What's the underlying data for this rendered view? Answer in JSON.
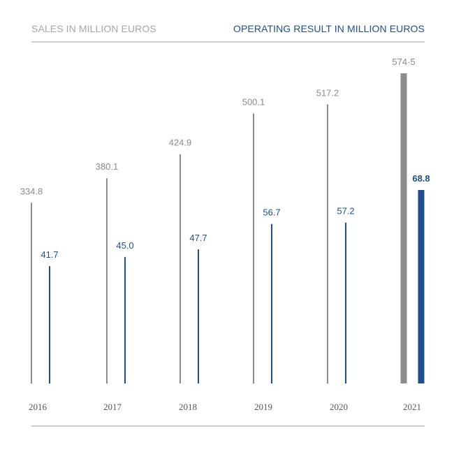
{
  "header": {
    "left_title": "SALES IN MILLION EUROS",
    "right_title": "OPERATING RESULT IN MILLION EUROS"
  },
  "colors": {
    "sales": "#8c8c8c",
    "sales_label": "#8c8c8c",
    "operating": "#1f4e8c",
    "operating_label": "#1f4e8c",
    "year_label": "#595959",
    "rule": "#cfcfcf"
  },
  "chart_data": {
    "type": "bar",
    "categories": [
      "2016",
      "2017",
      "2018",
      "2019",
      "2020",
      "2021"
    ],
    "series": [
      {
        "name": "SALES IN MILLION EUROS",
        "values": [
          334.8,
          380.1,
          424.9,
          500.1,
          517.2,
          574.5
        ],
        "labels": [
          "334.8",
          "380.1",
          "424.9",
          "500.1",
          "517.2",
          "574·5"
        ]
      },
      {
        "name": "OPERATING RESULT IN MILLION EUROS",
        "values": [
          41.7,
          45.0,
          47.7,
          56.7,
          57.2,
          68.8
        ],
        "labels": [
          "41.7",
          "45.0",
          "47.7",
          "56.7",
          "57.2",
          "68.8"
        ]
      }
    ],
    "highlight_category": "2021",
    "xlabel": "",
    "ylabel": "",
    "grid": false,
    "legend": "top"
  }
}
